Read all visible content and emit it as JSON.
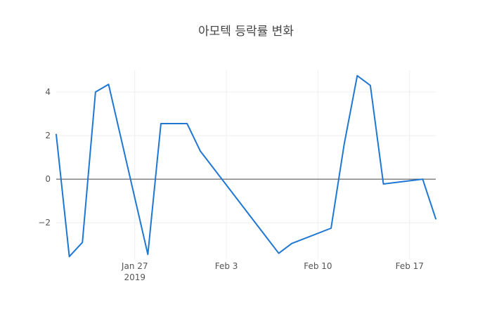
{
  "chart_data": {
    "type": "line",
    "title": "아모텍 등락률 변화",
    "xlabel": "",
    "ylabel": "",
    "x_range": [
      "2019-01-21",
      "2019-02-19"
    ],
    "ylim": [
      -3.7,
      5.0
    ],
    "grid": true,
    "legend": "none",
    "y_ticks": [
      {
        "value": -2,
        "label": "−2"
      },
      {
        "value": 0,
        "label": "0"
      },
      {
        "value": 2,
        "label": "2"
      },
      {
        "value": 4,
        "label": "4"
      }
    ],
    "x_ticks": [
      {
        "date": "2019-01-27",
        "label": "Jan 27",
        "sublabel": "2019"
      },
      {
        "date": "2019-02-03",
        "label": "Feb 3",
        "sublabel": ""
      },
      {
        "date": "2019-02-10",
        "label": "Feb 10",
        "sublabel": ""
      },
      {
        "date": "2019-02-17",
        "label": "Feb 17",
        "sublabel": ""
      }
    ],
    "series": [
      {
        "color": "#1f77d4",
        "points": [
          {
            "x": "2019-01-21",
            "y": 2.05
          },
          {
            "x": "2019-01-22",
            "y": -3.55
          },
          {
            "x": "2019-01-23",
            "y": -2.9
          },
          {
            "x": "2019-01-24",
            "y": 4.0
          },
          {
            "x": "2019-01-25",
            "y": 4.35
          },
          {
            "x": "2019-01-28",
            "y": -3.45
          },
          {
            "x": "2019-01-29",
            "y": 2.55
          },
          {
            "x": "2019-01-30",
            "y": 2.55
          },
          {
            "x": "2019-01-31",
            "y": 2.55
          },
          {
            "x": "2019-02-01",
            "y": 1.3
          },
          {
            "x": "2019-02-07",
            "y": -3.4
          },
          {
            "x": "2019-02-08",
            "y": -2.95
          },
          {
            "x": "2019-02-11",
            "y": -2.25
          },
          {
            "x": "2019-02-12",
            "y": 1.6
          },
          {
            "x": "2019-02-13",
            "y": 4.75
          },
          {
            "x": "2019-02-14",
            "y": 4.3
          },
          {
            "x": "2019-02-15",
            "y": -0.22
          },
          {
            "x": "2019-02-18",
            "y": 0.0
          },
          {
            "x": "2019-02-19",
            "y": -1.82
          }
        ]
      }
    ]
  }
}
